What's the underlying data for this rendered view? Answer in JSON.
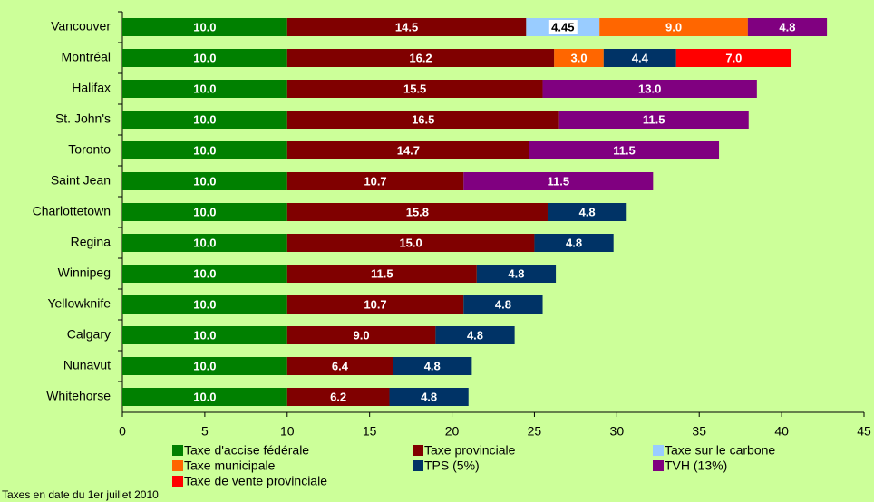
{
  "chart_data": {
    "type": "stacked_barh",
    "categories": [
      "Vancouver",
      "Montréal",
      "Halifax",
      "St. John's",
      "Toronto",
      "Saint Jean",
      "Charlottetown",
      "Regina",
      "Winnipeg",
      "Yellowknife",
      "Calgary",
      "Nunavut",
      "Whitehorse"
    ],
    "series": [
      {
        "name": "Taxe d'accise fédérale",
        "color": "#008000",
        "values": [
          10,
          10,
          10,
          10,
          10,
          10,
          10,
          10,
          10,
          10,
          10,
          10,
          10
        ],
        "value_labels": [
          "10.0",
          "10.0",
          "10.0",
          "10.0",
          "10.0",
          "10.0",
          "10.0",
          "10.0",
          "10.0",
          "10.0",
          "10.0",
          "10.0",
          "10.0"
        ]
      },
      {
        "name": "Taxe provinciale",
        "color": "#800000",
        "values": [
          14.5,
          16.2,
          15.5,
          16.5,
          14.7,
          10.7,
          15.8,
          15,
          11.5,
          10.7,
          9,
          6.4,
          6.2
        ],
        "value_labels": [
          "14.5",
          "16.2",
          "15.5",
          "16.5",
          "14.7",
          "10.7",
          "15.8",
          "15.0",
          "11.5",
          "10.7",
          "9.0",
          "6.4",
          "6.2"
        ]
      },
      {
        "name": "Taxe sur le carbone",
        "color": "#99ccff",
        "values": [
          4.45,
          null,
          null,
          null,
          null,
          null,
          null,
          null,
          null,
          null,
          null,
          null,
          null
        ],
        "value_labels": [
          "4.45",
          null,
          null,
          null,
          null,
          null,
          null,
          null,
          null,
          null,
          null,
          null,
          null
        ]
      },
      {
        "name": "Taxe municipale",
        "color": "#ff6600",
        "values": [
          9,
          3,
          null,
          null,
          null,
          null,
          null,
          null,
          null,
          null,
          null,
          null,
          null
        ],
        "value_labels": [
          "9.0",
          "3.0",
          null,
          null,
          null,
          null,
          null,
          null,
          null,
          null,
          null,
          null,
          null
        ]
      },
      {
        "name": "TPS (5%)",
        "color": "#003366",
        "values": [
          null,
          4.4,
          null,
          null,
          null,
          null,
          4.8,
          4.8,
          4.8,
          4.8,
          4.8,
          4.8,
          4.8
        ],
        "value_labels": [
          null,
          "4.4",
          null,
          null,
          null,
          null,
          "4.8",
          "4.8",
          "4.8",
          "4.8",
          "4.8",
          "4.8",
          "4.8"
        ]
      },
      {
        "name": "TVH (13%)",
        "color": "#800080",
        "values": [
          4.8,
          null,
          13,
          11.5,
          11.5,
          11.5,
          null,
          null,
          null,
          null,
          null,
          null,
          null
        ],
        "value_labels": [
          "4.8",
          null,
          "13.0",
          "11.5",
          "11.5",
          "11.5",
          null,
          null,
          null,
          null,
          null,
          null,
          null
        ]
      },
      {
        "name": "Taxe de vente provinciale",
        "color": "#ff0000",
        "values": [
          null,
          7,
          null,
          null,
          null,
          null,
          null,
          null,
          null,
          null,
          null,
          null,
          null
        ],
        "value_labels": [
          null,
          "7.0",
          null,
          null,
          null,
          null,
          null,
          null,
          null,
          null,
          null,
          null,
          null
        ]
      }
    ],
    "xlim": [
      0,
      45
    ],
    "xticks": [
      0,
      5,
      10,
      15,
      20,
      25,
      30,
      35,
      40,
      45
    ],
    "footnote": "Taxes en date du 1er juillet 2010"
  }
}
